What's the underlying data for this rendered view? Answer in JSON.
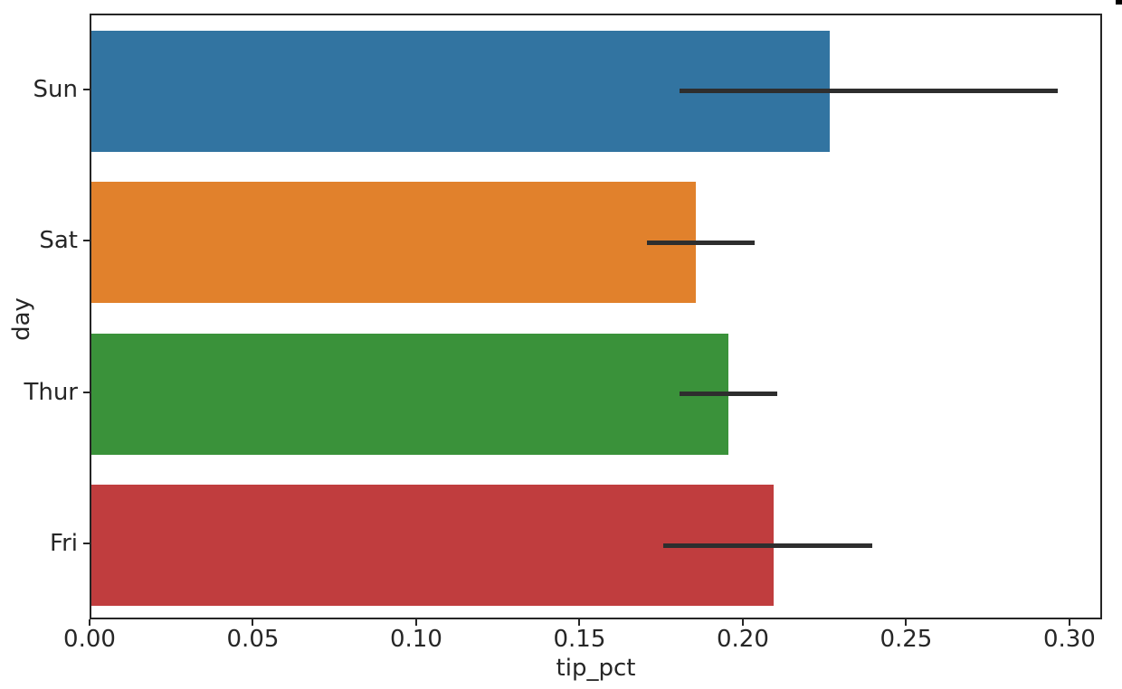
{
  "figure": {
    "background": "#ffffff",
    "spine_color": "#262626",
    "text_color": "#262626",
    "corner_artifact_color": "#000000"
  },
  "chart_data": {
    "type": "bar",
    "orientation": "horizontal",
    "title": "",
    "xlabel": "tip_pct",
    "ylabel": "day",
    "categories": [
      "Sun",
      "Sat",
      "Thur",
      "Fri"
    ],
    "values": [
      0.226,
      0.185,
      0.195,
      0.209
    ],
    "error_intervals": [
      [
        0.18,
        0.296
      ],
      [
        0.17,
        0.203
      ],
      [
        0.18,
        0.21
      ],
      [
        0.175,
        0.239
      ]
    ],
    "bar_colors": [
      "#3274a1",
      "#e1812c",
      "#3a923a",
      "#c03d3e"
    ],
    "error_bar_color": "#2e2e2e",
    "bar_width_fraction": 0.8,
    "xlim": [
      0.0,
      0.31
    ],
    "x_ticks": [
      "0.00",
      "0.05",
      "0.10",
      "0.15",
      "0.20",
      "0.25",
      "0.30"
    ],
    "grid": false,
    "legend": null
  }
}
